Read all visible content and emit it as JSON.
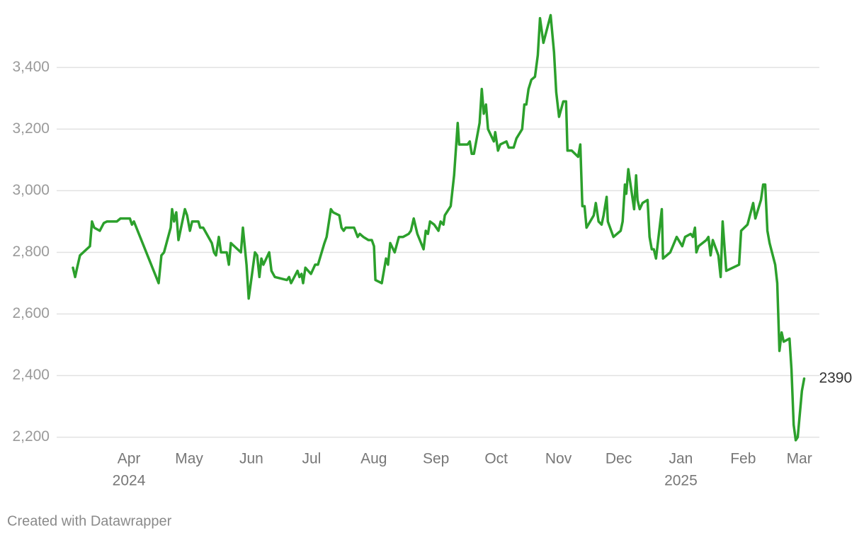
{
  "chart_data": {
    "type": "line",
    "color": "#2ca02c",
    "grid": true,
    "footer": "Created with Datawrapper",
    "xlim": [
      -5,
      375
    ],
    "ylim": [
      2160,
      3580
    ],
    "yticks": [
      {
        "value": 2200,
        "label": "2,200"
      },
      {
        "value": 2400,
        "label": "2,400"
      },
      {
        "value": 2600,
        "label": "2,600"
      },
      {
        "value": 2800,
        "label": "2,800"
      },
      {
        "value": 3000,
        "label": "3,000"
      },
      {
        "value": 3200,
        "label": "3,200"
      },
      {
        "value": 3400,
        "label": "3,400"
      }
    ],
    "xticks": [
      {
        "value": 31,
        "label": "Apr"
      },
      {
        "value": 61,
        "label": "May"
      },
      {
        "value": 92,
        "label": "Jun"
      },
      {
        "value": 122,
        "label": "Jul"
      },
      {
        "value": 153,
        "label": "Aug"
      },
      {
        "value": 184,
        "label": "Sep"
      },
      {
        "value": 214,
        "label": "Oct"
      },
      {
        "value": 245,
        "label": "Nov"
      },
      {
        "value": 275,
        "label": "Dec"
      },
      {
        "value": 306,
        "label": "Jan"
      },
      {
        "value": 337,
        "label": "Feb"
      },
      {
        "value": 365,
        "label": "Mar"
      }
    ],
    "xticks_year": [
      {
        "value": 31,
        "label": "2024"
      },
      {
        "value": 306,
        "label": "2025"
      }
    ],
    "annotations": [
      {
        "x": 367.4,
        "y": 2390,
        "text": "2390"
      }
    ],
    "x": [
      3.1,
      4.2,
      5.2,
      6.6,
      11.6,
      12.6,
      13.7,
      16.5,
      18.5,
      20,
      25,
      26.8,
      31.5,
      32.5,
      33.5,
      45.8,
      47.2,
      48.5,
      51.8,
      52.5,
      53.5,
      54.6,
      55.7,
      58.9,
      60,
      61.4,
      62.5,
      65.6,
      66.5,
      68,
      72.3,
      73.4,
      74.4,
      75.8,
      76.9,
      79.7,
      80.8,
      81.8,
      86.8,
      87.8,
      89.6,
      90.7,
      93.8,
      94.9,
      96,
      97,
      98,
      100.9,
      102,
      103.7,
      109.7,
      110.8,
      111.8,
      115,
      116,
      117,
      117.8,
      118.9,
      121.7,
      123.8,
      125.2,
      128.4,
      129.5,
      131.6,
      132.7,
      135.8,
      136.9,
      138,
      139,
      143.2,
      145,
      146,
      147.8,
      150.3,
      152,
      153.1,
      153.8,
      157,
      159.1,
      160.1,
      161.2,
      163.4,
      165.5,
      167.6,
      170.4,
      171.5,
      172.9,
      174.7,
      177.8,
      178.9,
      180,
      181,
      183.1,
      185.2,
      186.3,
      187.7,
      188.4,
      191.3,
      193,
      194.8,
      195.5,
      199.7,
      200.8,
      201.8,
      202.9,
      205.7,
      206.8,
      207.8,
      208.9,
      209.9,
      212.8,
      213.5,
      214.9,
      216,
      219.1,
      220.2,
      222.7,
      224.1,
      226.9,
      228,
      229,
      230.1,
      231.5,
      233.3,
      234.7,
      235.8,
      237.5,
      241.1,
      242.8,
      243.9,
      245.3,
      247.4,
      248.8,
      249.5,
      251.6,
      254.8,
      255.9,
      256.9,
      258,
      259,
      262.6,
      263.6,
      265,
      266.5,
      267.5,
      269,
      269.6,
      272.4,
      276,
      277,
      278.1,
      278.8,
      279.8,
      282.7,
      283.7,
      284.4,
      285.5,
      286.9,
      289.4,
      290.4,
      291.5,
      292.5,
      293.6,
      296.5,
      297.1,
      300.7,
      303.9,
      306.7,
      308.1,
      310.9,
      312,
      313,
      313.7,
      314.8,
      318.7,
      319.7,
      320.8,
      321.9,
      324.7,
      325.8,
      326.8,
      328.6,
      335,
      336,
      339.2,
      342,
      343.1,
      345.9,
      347,
      348,
      349.1,
      350.2,
      353,
      354,
      355.1,
      356.2,
      357.2,
      360.1,
      361.1,
      362.2,
      363.2,
      364.2,
      366.3,
      367.4
    ],
    "values": [
      2750,
      2720,
      2750,
      2790,
      2820,
      2900,
      2880,
      2870,
      2895,
      2900,
      2900,
      2910,
      2910,
      2890,
      2900,
      2700,
      2790,
      2800,
      2880,
      2940,
      2900,
      2930,
      2840,
      2940,
      2920,
      2870,
      2900,
      2900,
      2880,
      2880,
      2830,
      2800,
      2790,
      2850,
      2800,
      2800,
      2760,
      2830,
      2800,
      2880,
      2760,
      2650,
      2800,
      2790,
      2720,
      2780,
      2760,
      2800,
      2740,
      2720,
      2710,
      2720,
      2700,
      2740,
      2720,
      2730,
      2700,
      2750,
      2730,
      2760,
      2760,
      2830,
      2850,
      2940,
      2930,
      2920,
      2880,
      2870,
      2880,
      2880,
      2850,
      2860,
      2850,
      2840,
      2840,
      2820,
      2710,
      2700,
      2780,
      2760,
      2830,
      2800,
      2850,
      2850,
      2860,
      2870,
      2910,
      2860,
      2810,
      2870,
      2860,
      2900,
      2890,
      2870,
      2900,
      2890,
      2920,
      2950,
      3050,
      3220,
      3150,
      3150,
      3160,
      3120,
      3120,
      3220,
      3330,
      3250,
      3280,
      3200,
      3160,
      3190,
      3130,
      3150,
      3160,
      3140,
      3140,
      3170,
      3200,
      3280,
      3280,
      3330,
      3360,
      3370,
      3440,
      3560,
      3480,
      3570,
      3450,
      3320,
      3240,
      3290,
      3290,
      3130,
      3130,
      3110,
      3150,
      2950,
      2950,
      2880,
      2920,
      2960,
      2900,
      2890,
      2920,
      2980,
      2900,
      2850,
      2870,
      2900,
      3020,
      2990,
      3070,
      2940,
      3050,
      2970,
      2940,
      2960,
      2970,
      2850,
      2810,
      2810,
      2780,
      2940,
      2780,
      2800,
      2850,
      2820,
      2850,
      2860,
      2850,
      2880,
      2800,
      2820,
      2840,
      2850,
      2790,
      2840,
      2790,
      2720,
      2900,
      2740,
      2760,
      2870,
      2890,
      2960,
      2910,
      2970,
      3020,
      3020,
      2870,
      2830,
      2760,
      2700,
      2480,
      2540,
      2510,
      2520,
      2420,
      2240,
      2190,
      2200,
      2350,
      2390
    ]
  }
}
